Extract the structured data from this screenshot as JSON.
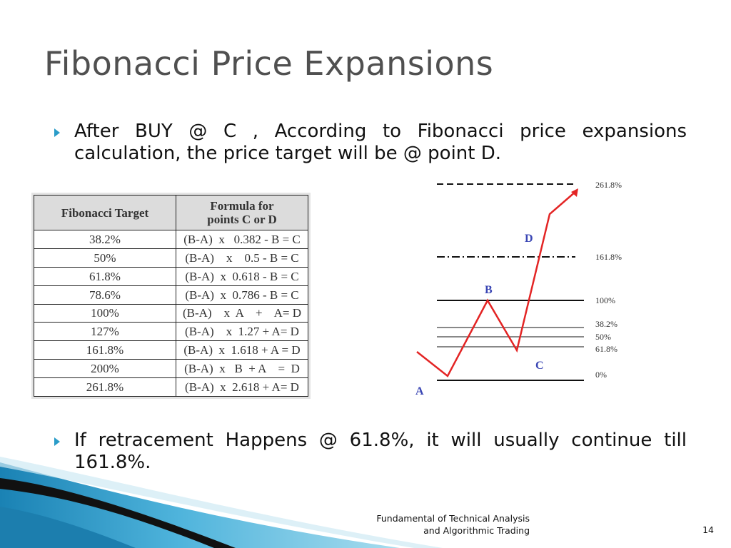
{
  "slide": {
    "title": "Fibonacci Price Expansions",
    "bullets": [
      {
        "text": "After BUY @ C , According to Fibonacci price expansions calculation, the price target will be @ point D."
      },
      {
        "text": "If retracement Happens @ 61.8%, it will usually continue till 161.8%."
      }
    ],
    "footer_line1": "Fundamental of Technical Analysis",
    "footer_line2": "and Algorithmic Trading",
    "page_number": "14"
  },
  "table": {
    "headers": [
      "Fibonacci Target",
      "Formula for points C or D"
    ],
    "rows": [
      [
        "38.2%",
        "(B-A)  x   0.382 - B = C"
      ],
      [
        "50%",
        "(B-A)    x    0.5 - B = C"
      ],
      [
        "61.8%",
        "(B-A)  x  0.618 - B = C"
      ],
      [
        "78.6%",
        "(B-A)  x  0.786 - B = C"
      ],
      [
        "100%",
        "(B-A)    x  A    +    A= D"
      ],
      [
        "127%",
        "(B-A)    x  1.27 + A= D"
      ],
      [
        "161.8%",
        "(B-A)  x  1.618 + A = D"
      ],
      [
        "200%",
        "(B-A)  x   B  + A    =  D"
      ],
      [
        "261.8%",
        "(B-A)  x  2.618 + A= D"
      ]
    ]
  },
  "diagram": {
    "level_labels": [
      "261.8%",
      "161.8%",
      "100%",
      "38.2%",
      "50%",
      "61.8%",
      "0%"
    ],
    "point_labels": {
      "a": "A",
      "b": "B",
      "c": "C",
      "d": "D"
    },
    "price_line_color": "#e32424",
    "label_color": "#3a46b4"
  },
  "theme": {
    "accent": "#2a9cc8"
  }
}
